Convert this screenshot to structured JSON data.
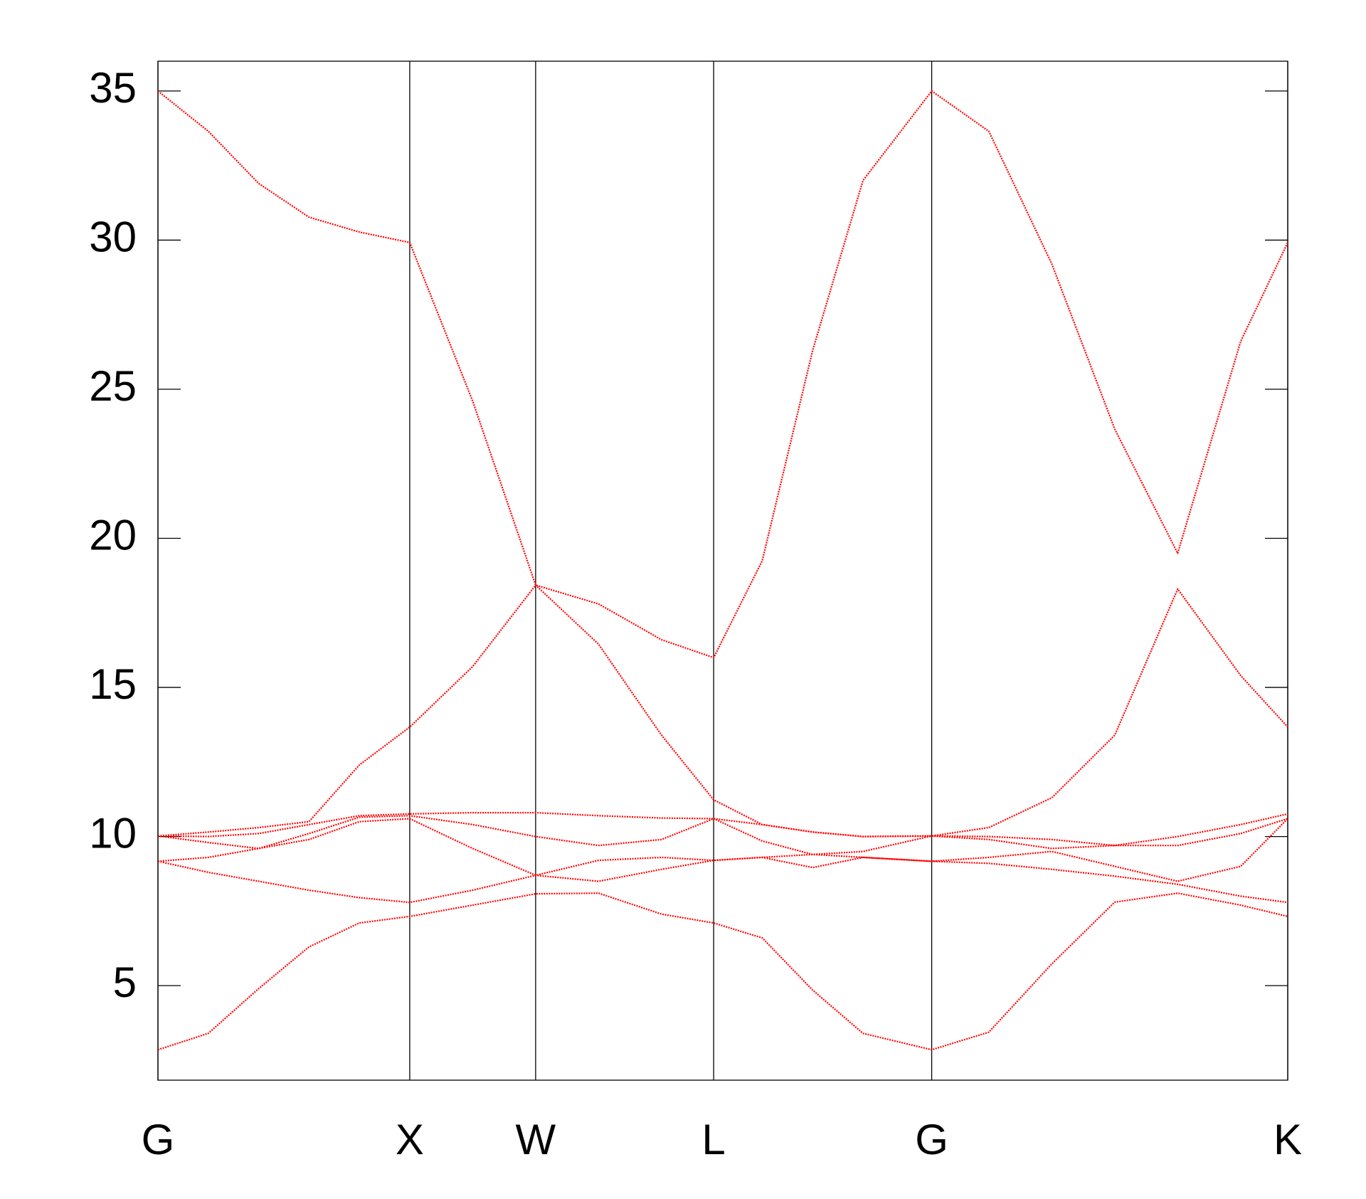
{
  "chart_data": {
    "type": "line",
    "x": [
      0,
      0.2,
      0.4,
      0.6,
      0.8,
      1,
      1.25,
      1.5,
      1.75,
      2,
      2.207,
      2.4,
      2.6,
      2.8,
      3.073,
      3.3,
      3.55,
      3.8,
      4.05,
      4.3,
      4.487
    ],
    "series": [
      {
        "color": "#ff0000",
        "values": [
          2.85,
          3.4,
          4.9,
          6.3,
          7.1,
          7.32,
          7.7,
          8.08,
          8.1,
          7.4,
          7.1,
          6.6,
          4.85,
          3.4,
          2.85,
          3.44,
          5.73,
          7.8,
          8.1,
          7.7,
          7.32
        ]
      },
      {
        "color": "#ff0000",
        "values": [
          9.17,
          8.8,
          8.5,
          8.2,
          7.95,
          7.79,
          8.2,
          8.7,
          8.5,
          8.9,
          9.2,
          9.3,
          8.96,
          9.3,
          9.17,
          9.1,
          8.9,
          8.67,
          8.4,
          8.0,
          7.79
        ]
      },
      {
        "color": "#ff0000",
        "values": [
          9.17,
          9.3,
          9.6,
          9.9,
          10.5,
          10.6,
          9.6,
          8.7,
          9.2,
          9.3,
          9.2,
          9.3,
          9.4,
          9.3,
          9.17,
          9.3,
          9.5,
          9.0,
          8.5,
          9.0,
          10.6
        ]
      },
      {
        "color": "#ff0000",
        "values": [
          10.02,
          9.8,
          9.6,
          10.1,
          10.65,
          10.7,
          10.4,
          10.0,
          9.7,
          9.9,
          10.6,
          9.85,
          9.4,
          9.5,
          10.02,
          9.9,
          9.6,
          9.7,
          9.7,
          10.1,
          10.6
        ]
      },
      {
        "color": "#ff0000",
        "values": [
          10.02,
          10.0,
          10.1,
          10.4,
          10.7,
          10.76,
          10.8,
          10.8,
          10.7,
          10.62,
          10.6,
          10.4,
          10.15,
          10.0,
          10.02,
          10.0,
          9.9,
          9.7,
          10.0,
          10.4,
          10.76
        ]
      },
      {
        "color": "#ff0000",
        "values": [
          10.02,
          10.15,
          10.3,
          10.5,
          12.4,
          13.67,
          15.7,
          18.43,
          16.45,
          13.4,
          11.23,
          10.4,
          10.15,
          10.0,
          10.02,
          10.3,
          11.3,
          13.4,
          18.3,
          15.4,
          13.67
        ]
      },
      {
        "color": "#ff0000",
        "values": [
          35,
          33.65,
          31.9,
          30.77,
          30.27,
          29.92,
          24.6,
          18.43,
          17.8,
          16.6,
          16.0,
          19.25,
          26.3,
          32.0,
          35,
          33.65,
          29.2,
          23.66,
          19.5,
          26.6,
          29.92
        ]
      }
    ],
    "xlim": [
      0,
      4.487
    ],
    "xticks": [
      {
        "value": 0,
        "label": "G"
      },
      {
        "value": 1,
        "label": "X"
      },
      {
        "value": 1.5,
        "label": "W"
      },
      {
        "value": 2.207,
        "label": "L"
      },
      {
        "value": 3.073,
        "label": "G"
      },
      {
        "value": 4.487,
        "label": "K"
      }
    ],
    "ylim": [
      1.83,
      36
    ],
    "yticks": [
      5,
      10,
      15,
      20,
      25,
      30,
      35
    ]
  }
}
